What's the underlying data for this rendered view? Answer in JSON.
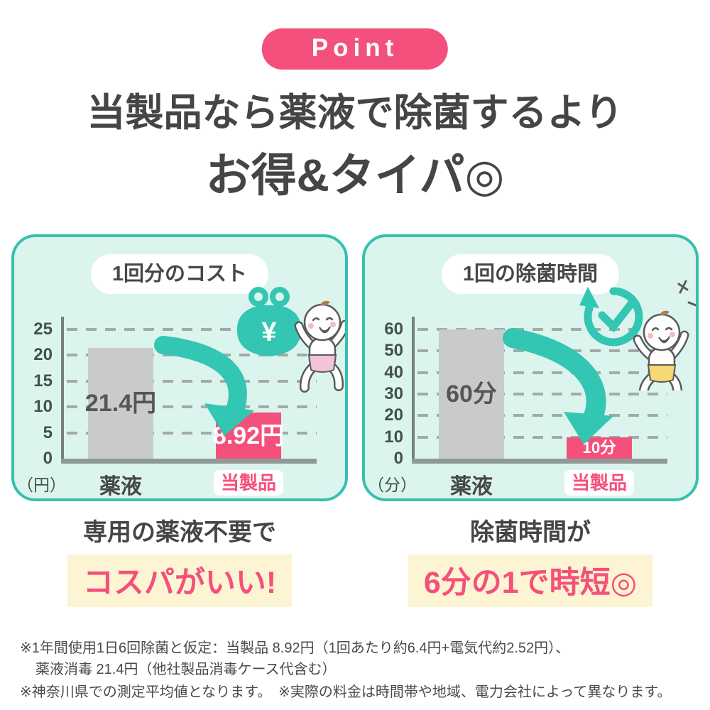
{
  "badge": {
    "label": "Point"
  },
  "heading": {
    "line1": "当製品なら薬液で除菌するより",
    "line2": "お得&タイパ◎"
  },
  "colors": {
    "accent_pink": "#f4507c",
    "teal": "#33c6b3",
    "panel_border": "#35c1ae",
    "panel_bg": "#dcf4ee",
    "gray_bar": "#c9cbca",
    "highlight_yellow": "#fcf4d2",
    "text_dark": "#474747"
  },
  "chart_data": [
    {
      "type": "bar",
      "title": "1回分のコスト",
      "unit": "（円）",
      "categories": [
        "薬液",
        "当製品"
      ],
      "values": [
        21.4,
        8.92
      ],
      "bar_labels": [
        "21.4円",
        "8.92円"
      ],
      "bar_colors": [
        "#c9cbca",
        "#f4507c"
      ],
      "yticks": [
        0,
        5,
        10,
        15,
        20,
        25
      ],
      "ylim": [
        0,
        27
      ],
      "grid": "dashed-horizontal",
      "legend": "none",
      "annotation": "teal curved arrow from 薬液 bar down to 当製品 bar"
    },
    {
      "type": "bar",
      "title": "1回の除菌時間",
      "unit": "（分）",
      "categories": [
        "薬液",
        "当製品"
      ],
      "values": [
        60,
        10
      ],
      "bar_labels": [
        "60分",
        "10分"
      ],
      "bar_colors": [
        "#c9cbca",
        "#f4507c"
      ],
      "yticks": [
        0,
        10,
        20,
        30,
        40,
        50,
        60
      ],
      "ylim": [
        0,
        65
      ],
      "grid": "dashed-horizontal",
      "legend": "none",
      "annotation": "teal curved arrow from 薬液 bar down to 当製品 bar"
    }
  ],
  "panels": [
    {
      "illustration": "coin-purse-and-baby",
      "purse_symbol": "¥",
      "caption_top": "専用の薬液不要で",
      "caption_highlight": "コスパがいい!"
    },
    {
      "illustration": "timer-check-and-baby",
      "caption_top": "除菌時間が",
      "caption_highlight": "6分の1で時短◎"
    }
  ],
  "footnotes": [
    "※1年間使用1日6回除菌と仮定：当製品 8.92円（1回あたり約6.4円+電気代約2.52円）、",
    "薬液消毒 21.4円（他社製品消毒ケース代含む）",
    "※神奈川県での測定平均値となります。　※実際の料金は時間帯や地域、電力会社によって異なります。"
  ]
}
